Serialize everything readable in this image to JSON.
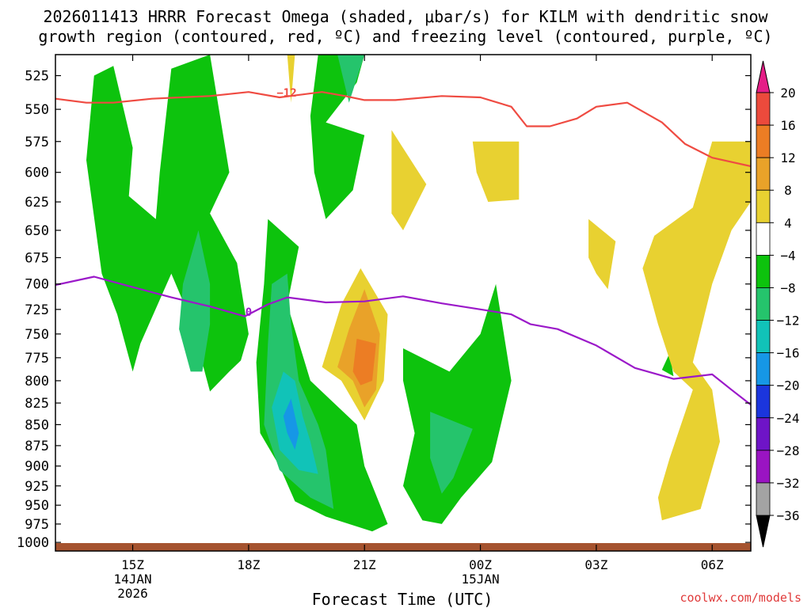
{
  "chart_data": {
    "type": "contour",
    "title_line1": "2026011413 HRRR Forecast Omega (shaded, μbar/s) for KILM with dendritic snow",
    "title_line2": "growth region (contoured, red, ºC) and freezing level (contoured, purple, ºC)",
    "xlabel": "Forecast Time (UTC)",
    "ylabel": "",
    "credit": "coolwx.com/models",
    "y_ticks": [
      "525",
      "550",
      "575",
      "600",
      "625",
      "650",
      "675",
      "700",
      "725",
      "750",
      "775",
      "800",
      "825",
      "850",
      "875",
      "900",
      "925",
      "950",
      "975",
      "1000"
    ],
    "x_ticks": [
      {
        "label": "15Z",
        "sub1": "14JAN",
        "sub2": "2026",
        "hour": 15
      },
      {
        "label": "18Z",
        "sub1": "",
        "sub2": "",
        "hour": 18
      },
      {
        "label": "21Z",
        "sub1": "",
        "sub2": "",
        "hour": 21
      },
      {
        "label": "00Z",
        "sub1": "15JAN",
        "sub2": "",
        "hour": 24
      },
      {
        "label": "03Z",
        "sub1": "",
        "sub2": "",
        "hour": 27
      },
      {
        "label": "06Z",
        "sub1": "",
        "sub2": "",
        "hour": 30
      }
    ],
    "x_range_hours": [
      13,
      31
    ],
    "y_range_hpa": [
      510,
      1012
    ],
    "colorbar": {
      "labels": [
        "20",
        "16",
        "12",
        "8",
        "4",
        "−4",
        "−8",
        "−12",
        "−16",
        "−20",
        "−24",
        "−28",
        "−32",
        "−36"
      ],
      "colors": [
        "#ea3a5c",
        "#ec4a3c",
        "#ec7d24",
        "#e9a229",
        "#e8d131",
        "#ffffff",
        "#0dc30d",
        "#25c46c",
        "#11c3b8",
        "#1697e6",
        "#1b35dd",
        "#6e14c7",
        "#9a14c2",
        "#a3a3a3"
      ],
      "top_arrow_color": "#e51e87",
      "bottom_arrow_color": "#000000"
    },
    "contour_labels": {
      "dgz": "−12",
      "freezing": "0"
    },
    "dgz_line_color": "#ef4b42",
    "freezing_line_color": "#9b19c9",
    "terrain_color": "#a5532f",
    "dgz_minus12_level": [
      [
        13.0,
        542
      ],
      [
        13.8,
        545
      ],
      [
        14.5,
        545
      ],
      [
        15.5,
        542
      ],
      [
        17.0,
        540
      ],
      [
        18.0,
        537
      ],
      [
        18.8,
        541
      ],
      [
        19.9,
        537
      ],
      [
        20.5,
        540
      ],
      [
        21.0,
        543
      ],
      [
        21.8,
        543
      ],
      [
        23.0,
        540
      ],
      [
        24.0,
        541
      ],
      [
        24.8,
        548
      ],
      [
        25.2,
        563
      ],
      [
        25.8,
        563
      ],
      [
        26.5,
        557
      ],
      [
        27.0,
        548
      ],
      [
        27.8,
        545
      ],
      [
        28.7,
        560
      ],
      [
        29.3,
        577
      ],
      [
        30.0,
        588
      ],
      [
        31.0,
        595
      ]
    ],
    "freezing_level": [
      [
        13.0,
        701
      ],
      [
        14.0,
        693
      ],
      [
        15.0,
        703
      ],
      [
        16.0,
        713
      ],
      [
        17.0,
        722
      ],
      [
        17.9,
        732
      ],
      [
        18.5,
        720
      ],
      [
        19.0,
        713
      ],
      [
        20.0,
        718
      ],
      [
        21.0,
        717
      ],
      [
        22.0,
        712
      ],
      [
        23.0,
        719
      ],
      [
        24.0,
        725
      ],
      [
        24.8,
        730
      ],
      [
        25.3,
        740
      ],
      [
        26.0,
        745
      ],
      [
        27.0,
        762
      ],
      [
        28.0,
        786
      ],
      [
        29.0,
        798
      ],
      [
        30.0,
        793
      ],
      [
        30.5,
        810
      ],
      [
        31.0,
        827
      ]
    ],
    "omega_regions": [
      {
        "band": "-4",
        "points": [
          [
            14.0,
            525
          ],
          [
            14.5,
            518
          ],
          [
            15.0,
            580
          ],
          [
            14.9,
            620
          ],
          [
            15.6,
            640
          ],
          [
            15.7,
            600
          ],
          [
            16.0,
            520
          ],
          [
            17.0,
            510
          ],
          [
            17.5,
            600
          ],
          [
            17.0,
            635
          ],
          [
            17.7,
            680
          ],
          [
            18.0,
            750
          ],
          [
            17.8,
            778
          ],
          [
            17.5,
            790
          ],
          [
            17.0,
            812
          ],
          [
            16.5,
            735
          ],
          [
            16.0,
            690
          ],
          [
            15.2,
            760
          ],
          [
            15.0,
            790
          ],
          [
            14.6,
            730
          ],
          [
            14.2,
            690
          ],
          [
            13.8,
            590
          ]
        ]
      },
      {
        "band": "-8",
        "points": [
          [
            16.7,
            650
          ],
          [
            17.0,
            700
          ],
          [
            17.0,
            740
          ],
          [
            16.8,
            790
          ],
          [
            16.5,
            790
          ],
          [
            16.2,
            745
          ],
          [
            16.3,
            700
          ]
        ]
      },
      {
        "band": "-4",
        "points": [
          [
            19.8,
            510
          ],
          [
            21.0,
            510
          ],
          [
            20.8,
            530
          ],
          [
            20.0,
            560
          ],
          [
            21.0,
            570
          ],
          [
            20.7,
            615
          ],
          [
            20.0,
            640
          ],
          [
            19.7,
            600
          ],
          [
            19.6,
            555
          ]
        ]
      },
      {
        "band": "-8",
        "points": [
          [
            20.3,
            510
          ],
          [
            21.0,
            510
          ],
          [
            20.6,
            545
          ]
        ]
      },
      {
        "band": "-4",
        "points": [
          [
            18.5,
            640
          ],
          [
            19.3,
            665
          ],
          [
            19.0,
            720
          ],
          [
            19.6,
            800
          ],
          [
            20.8,
            850
          ],
          [
            21.0,
            900
          ],
          [
            21.6,
            975
          ],
          [
            21.2,
            985
          ],
          [
            20.0,
            965
          ],
          [
            19.2,
            945
          ],
          [
            18.8,
            900
          ],
          [
            18.3,
            860
          ],
          [
            18.2,
            780
          ],
          [
            18.4,
            700
          ]
        ]
      },
      {
        "band": "-8",
        "points": [
          [
            19.0,
            690
          ],
          [
            19.1,
            740
          ],
          [
            19.3,
            800
          ],
          [
            19.8,
            850
          ],
          [
            20.0,
            880
          ],
          [
            20.2,
            955
          ],
          [
            19.6,
            940
          ],
          [
            18.8,
            905
          ],
          [
            18.4,
            850
          ],
          [
            18.5,
            760
          ],
          [
            18.6,
            700
          ]
        ]
      },
      {
        "band": "-12",
        "points": [
          [
            18.9,
            790
          ],
          [
            19.2,
            800
          ],
          [
            19.4,
            840
          ],
          [
            19.6,
            870
          ],
          [
            19.8,
            910
          ],
          [
            19.3,
            905
          ],
          [
            18.8,
            880
          ],
          [
            18.6,
            830
          ]
        ]
      },
      {
        "band": "-16",
        "points": [
          [
            19.1,
            820
          ],
          [
            19.3,
            860
          ],
          [
            19.2,
            880
          ],
          [
            19.0,
            860
          ],
          [
            18.9,
            840
          ]
        ]
      },
      {
        "band": "-4",
        "points": [
          [
            22.0,
            765
          ],
          [
            23.2,
            790
          ],
          [
            24.0,
            750
          ],
          [
            24.4,
            700
          ],
          [
            24.8,
            800
          ],
          [
            24.3,
            895
          ],
          [
            23.5,
            940
          ],
          [
            23.0,
            975
          ],
          [
            22.5,
            970
          ],
          [
            22.0,
            925
          ],
          [
            22.3,
            860
          ],
          [
            22.0,
            800
          ]
        ]
      },
      {
        "band": "-8",
        "points": [
          [
            22.7,
            835
          ],
          [
            23.8,
            855
          ],
          [
            23.3,
            915
          ],
          [
            23.0,
            935
          ],
          [
            22.7,
            890
          ]
        ]
      },
      {
        "band": "-4",
        "points": [
          [
            28.9,
            770
          ],
          [
            29.0,
            795
          ],
          [
            28.7,
            788
          ]
        ]
      }
    ],
    "omega_positive_regions": [
      {
        "band": "4",
        "points": [
          [
            19.0,
            510
          ],
          [
            19.2,
            510
          ],
          [
            19.1,
            545
          ]
        ]
      },
      {
        "band": "4",
        "points": [
          [
            21.7,
            566
          ],
          [
            22.6,
            610
          ],
          [
            22.0,
            650
          ],
          [
            21.7,
            635
          ],
          [
            21.7,
            590
          ]
        ]
      },
      {
        "band": "4",
        "points": [
          [
            23.8,
            575
          ],
          [
            25.0,
            575
          ],
          [
            25.0,
            623
          ],
          [
            24.2,
            625
          ],
          [
            23.9,
            600
          ]
        ]
      },
      {
        "band": "4",
        "points": [
          [
            20.9,
            685
          ],
          [
            21.6,
            730
          ],
          [
            21.5,
            800
          ],
          [
            21.0,
            845
          ],
          [
            20.4,
            800
          ],
          [
            19.9,
            785
          ],
          [
            20.4,
            720
          ]
        ]
      },
      {
        "band": "8",
        "points": [
          [
            21.0,
            705
          ],
          [
            21.4,
            750
          ],
          [
            21.3,
            810
          ],
          [
            21.0,
            830
          ],
          [
            20.7,
            800
          ],
          [
            20.3,
            785
          ],
          [
            20.6,
            745
          ]
        ]
      },
      {
        "band": "12",
        "points": [
          [
            20.8,
            755
          ],
          [
            21.3,
            760
          ],
          [
            21.2,
            800
          ],
          [
            20.9,
            805
          ],
          [
            20.7,
            790
          ]
        ]
      },
      {
        "band": "4",
        "points": [
          [
            26.8,
            640
          ],
          [
            27.5,
            660
          ],
          [
            27.3,
            705
          ],
          [
            27.0,
            690
          ],
          [
            26.8,
            675
          ]
        ]
      },
      {
        "band": "4",
        "points": [
          [
            30.0,
            575
          ],
          [
            31.0,
            575
          ],
          [
            31.0,
            625
          ],
          [
            30.5,
            650
          ],
          [
            30.0,
            700
          ],
          [
            29.5,
            780
          ],
          [
            30.0,
            810
          ],
          [
            30.2,
            870
          ],
          [
            29.7,
            955
          ],
          [
            28.7,
            970
          ],
          [
            28.6,
            940
          ],
          [
            28.9,
            890
          ],
          [
            29.5,
            810
          ],
          [
            29.0,
            790
          ],
          [
            28.6,
            740
          ],
          [
            28.2,
            685
          ],
          [
            28.5,
            655
          ],
          [
            29.5,
            630
          ]
        ]
      }
    ]
  }
}
